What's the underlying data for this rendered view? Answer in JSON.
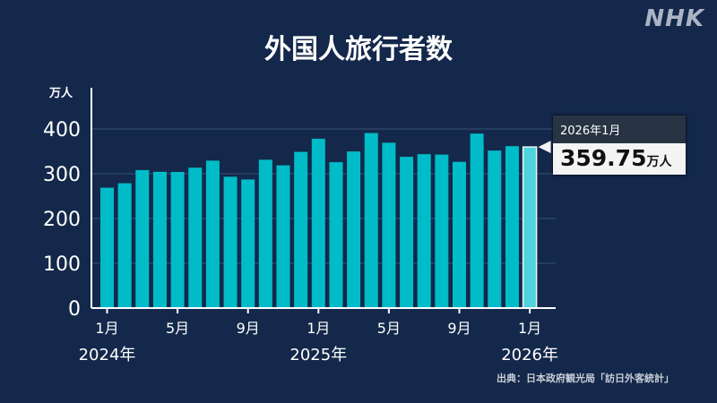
{
  "title": "外国人旅行者数",
  "logo": "NHK",
  "source": "出典：日本政府観光局「訪日外客統計」",
  "tooltip": {
    "label": "2026年1月",
    "value": "359.75",
    "unit": "万人"
  },
  "colors": {
    "bar": "#00bcc9",
    "highlight": "#4fd3dc",
    "background": "#13284a"
  },
  "chart_data": {
    "type": "bar",
    "title": "外国人旅行者数",
    "ylabel": "万人",
    "ylim": [
      0,
      400
    ],
    "yticks": [
      0,
      100,
      200,
      300,
      400
    ],
    "grid": true,
    "months": [
      "2024-01",
      "2024-02",
      "2024-03",
      "2024-04",
      "2024-05",
      "2024-06",
      "2024-07",
      "2024-08",
      "2024-09",
      "2024-10",
      "2024-11",
      "2024-12",
      "2025-01",
      "2025-02",
      "2025-03",
      "2025-04",
      "2025-05",
      "2025-06",
      "2025-07",
      "2025-08",
      "2025-09",
      "2025-10",
      "2025-11",
      "2025-12",
      "2026-01"
    ],
    "values": [
      268.8,
      278.8,
      308.2,
      304.3,
      304.0,
      313.6,
      329.2,
      293.3,
      287.2,
      331.2,
      318.8,
      348.9,
      378.2,
      325.9,
      349.8,
      390.9,
      369.3,
      337.8,
      343.7,
      342.8,
      326.6,
      389.6,
      351.8,
      361.7,
      359.75
    ],
    "xticks": [
      {
        "index": 0,
        "label": "1月",
        "year": "2024年"
      },
      {
        "index": 4,
        "label": "5月"
      },
      {
        "index": 8,
        "label": "9月"
      },
      {
        "index": 12,
        "label": "1月",
        "year": "2025年"
      },
      {
        "index": 16,
        "label": "5月"
      },
      {
        "index": 20,
        "label": "9月"
      },
      {
        "index": 24,
        "label": "1月",
        "year": "2026年"
      }
    ]
  }
}
